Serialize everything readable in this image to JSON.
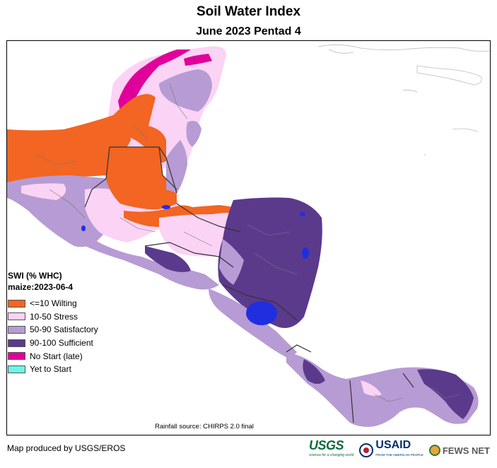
{
  "title": "Soil Water Index",
  "subtitle": "June 2023 Pentad 4",
  "legend": {
    "title": "SWI (% WHC)",
    "subtitle": "maize:2023-06-4",
    "items": [
      {
        "label": "<=10 Wilting",
        "color": "#f26522"
      },
      {
        "label": "10-50 Stress",
        "color": "#fbd3f5"
      },
      {
        "label": "50-90 Satisfactory",
        "color": "#b79bd4"
      },
      {
        "label": "90-100 Sufficient",
        "color": "#5b3a8c"
      },
      {
        "label": "No Start (late)",
        "color": "#e0009a"
      },
      {
        "label": "Yet to Start",
        "color": "#6ef5e8"
      }
    ]
  },
  "source": "Rainfall source: CHIRPS 2.0 final",
  "footer": {
    "credit": "Map produced by USGS/EROS",
    "logos": {
      "usgs": "USGS",
      "usgs_tagline": "science for a changing world",
      "usaid": "USAID",
      "usaid_tagline": "FROM THE AMERICAN PEOPLE",
      "fews": "FEWS NET"
    }
  },
  "colors": {
    "water_body": "#1f2fe0",
    "border": "#333333"
  }
}
